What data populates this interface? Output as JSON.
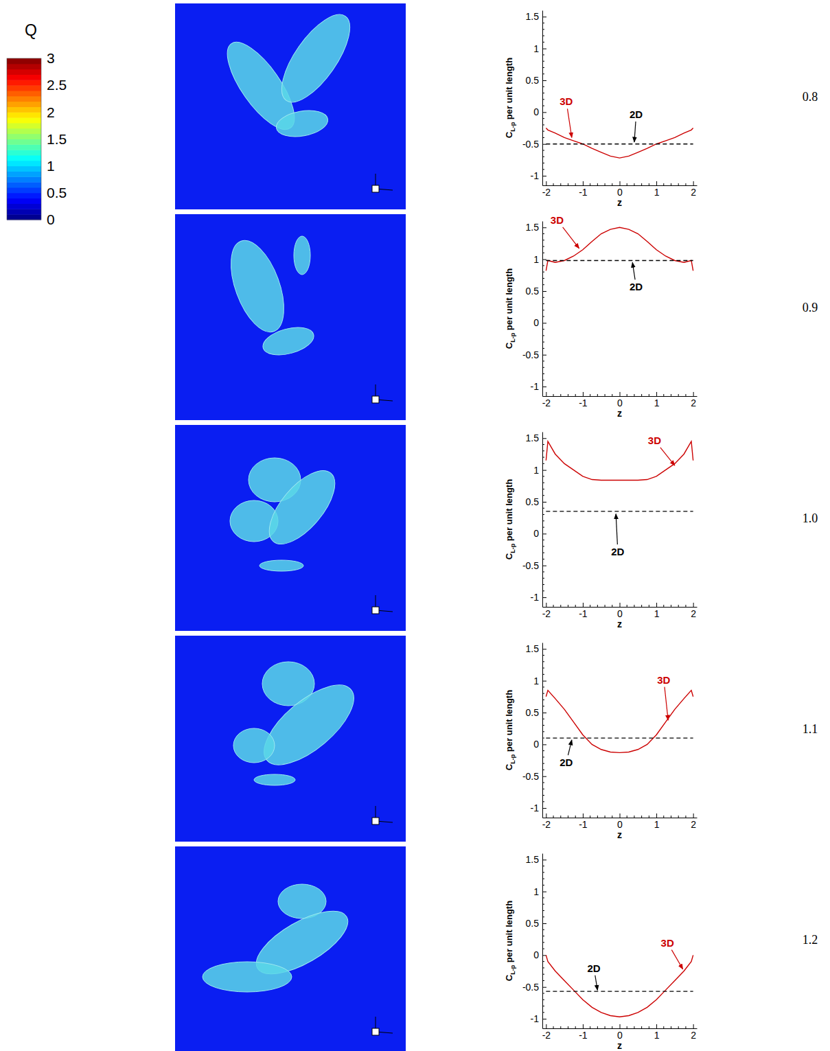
{
  "chart_data": [
    {
      "type": "line",
      "label": "0.8",
      "xlabel": "z",
      "ylabel": [
        "C",
        "L-p",
        " per unit length"
      ],
      "x": [
        -2,
        -1.95,
        -1.75,
        -1.5,
        -1.25,
        -1,
        -0.75,
        -0.5,
        -0.25,
        0,
        0.25,
        0.5,
        0.75,
        1,
        1.25,
        1.5,
        1.75,
        1.95,
        2
      ],
      "xlim": [
        -2.1,
        2.1
      ],
      "xticks": [
        -2,
        -1,
        0,
        1,
        2
      ],
      "ylim": [
        -1.15,
        1.6
      ],
      "yticks": [
        -1,
        -0.5,
        0,
        0.5,
        1,
        1.5
      ],
      "series": [
        {
          "name": "3D",
          "color": "#cc0000",
          "line_style": "solid",
          "label_x": -1.45,
          "label_y": 0.15,
          "arrow_x": -1.3,
          "arrow_y": -0.4,
          "values": [
            -0.25,
            -0.28,
            -0.33,
            -0.4,
            -0.45,
            -0.5,
            -0.57,
            -0.63,
            -0.69,
            -0.72,
            -0.69,
            -0.63,
            -0.57,
            -0.5,
            -0.45,
            -0.4,
            -0.33,
            -0.28,
            -0.25
          ]
        },
        {
          "name": "2D",
          "color": "#000000",
          "line_style": "dashed",
          "label_x": 0.45,
          "label_y": -0.05,
          "arrow_x": 0.4,
          "arrow_y": -0.47,
          "values": [
            -0.5,
            -0.5,
            -0.5,
            -0.5,
            -0.5,
            -0.5,
            -0.5,
            -0.5,
            -0.5,
            -0.5,
            -0.5,
            -0.5,
            -0.5,
            -0.5,
            -0.5,
            -0.5,
            -0.5,
            -0.5,
            -0.5
          ]
        }
      ]
    },
    {
      "type": "line",
      "label": "0.9",
      "xlabel": "z",
      "ylabel": [
        "C",
        "L-p",
        " per unit length"
      ],
      "x": [
        -2,
        -1.95,
        -1.75,
        -1.5,
        -1.25,
        -1,
        -0.75,
        -0.5,
        -0.25,
        0,
        0.25,
        0.5,
        0.75,
        1,
        1.25,
        1.5,
        1.75,
        1.95,
        2
      ],
      "xlim": [
        -2.1,
        2.1
      ],
      "xticks": [
        -2,
        -1,
        0,
        1,
        2
      ],
      "ylim": [
        -1.15,
        1.6
      ],
      "yticks": [
        -1,
        -0.5,
        0,
        0.5,
        1,
        1.5
      ],
      "series": [
        {
          "name": "3D",
          "color": "#cc0000",
          "line_style": "solid",
          "label_x": -1.7,
          "label_y": 1.6,
          "arrow_x": -1.1,
          "arrow_y": 1.17,
          "values": [
            0.82,
            0.98,
            0.95,
            0.98,
            1.05,
            1.15,
            1.28,
            1.4,
            1.47,
            1.5,
            1.47,
            1.4,
            1.28,
            1.15,
            1.05,
            0.98,
            0.95,
            0.98,
            0.82
          ]
        },
        {
          "name": "2D",
          "color": "#000000",
          "line_style": "dashed",
          "label_x": 0.45,
          "label_y": 0.55,
          "arrow_x": 0.35,
          "arrow_y": 0.95,
          "values": [
            0.98,
            0.98,
            0.98,
            0.98,
            0.98,
            0.98,
            0.98,
            0.98,
            0.98,
            0.98,
            0.98,
            0.98,
            0.98,
            0.98,
            0.98,
            0.98,
            0.98,
            0.98,
            0.98
          ]
        }
      ]
    },
    {
      "type": "line",
      "label": "1.0",
      "xlabel": "z",
      "ylabel": [
        "C",
        "L-p",
        " per unit length"
      ],
      "x": [
        -2,
        -1.95,
        -1.75,
        -1.5,
        -1.25,
        -1,
        -0.75,
        -0.5,
        -0.25,
        0,
        0.25,
        0.5,
        0.75,
        1,
        1.25,
        1.5,
        1.75,
        1.95,
        2
      ],
      "xlim": [
        -2.1,
        2.1
      ],
      "xticks": [
        -2,
        -1,
        0,
        1,
        2
      ],
      "ylim": [
        -1.15,
        1.6
      ],
      "yticks": [
        -1,
        -0.5,
        0,
        0.5,
        1,
        1.5
      ],
      "series": [
        {
          "name": "3D",
          "color": "#cc0000",
          "line_style": "solid",
          "label_x": 0.95,
          "label_y": 1.45,
          "arrow_x": 1.5,
          "arrow_y": 1.07,
          "values": [
            1.15,
            1.45,
            1.25,
            1.1,
            1.0,
            0.9,
            0.85,
            0.84,
            0.84,
            0.84,
            0.84,
            0.84,
            0.85,
            0.9,
            1.0,
            1.1,
            1.25,
            1.45,
            1.15
          ]
        },
        {
          "name": "2D",
          "color": "#000000",
          "line_style": "dashed",
          "label_x": -0.05,
          "label_y": -0.3,
          "arrow_x": -0.1,
          "arrow_y": 0.31,
          "values": [
            0.35,
            0.35,
            0.35,
            0.35,
            0.35,
            0.35,
            0.35,
            0.35,
            0.35,
            0.35,
            0.35,
            0.35,
            0.35,
            0.35,
            0.35,
            0.35,
            0.35,
            0.35,
            0.35
          ]
        }
      ]
    },
    {
      "type": "line",
      "label": "1.1",
      "xlabel": "z",
      "ylabel": [
        "C",
        "L-p",
        " per unit length"
      ],
      "x": [
        -2,
        -1.95,
        -1.75,
        -1.5,
        -1.25,
        -1,
        -0.75,
        -0.5,
        -0.25,
        0,
        0.25,
        0.5,
        0.75,
        1,
        1.25,
        1.5,
        1.75,
        1.95,
        2
      ],
      "xlim": [
        -2.1,
        2.1
      ],
      "xticks": [
        -2,
        -1,
        0,
        1,
        2
      ],
      "ylim": [
        -1.15,
        1.6
      ],
      "yticks": [
        -1,
        -0.5,
        0,
        0.5,
        1,
        1.5
      ],
      "series": [
        {
          "name": "3D",
          "color": "#cc0000",
          "line_style": "solid",
          "label_x": 1.2,
          "label_y": 1.0,
          "arrow_x": 1.32,
          "arrow_y": 0.38,
          "values": [
            0.75,
            0.85,
            0.72,
            0.55,
            0.35,
            0.15,
            0.0,
            -0.08,
            -0.12,
            -0.13,
            -0.12,
            -0.08,
            0.0,
            0.15,
            0.35,
            0.55,
            0.72,
            0.85,
            0.75
          ]
        },
        {
          "name": "2D",
          "color": "#000000",
          "line_style": "dashed",
          "label_x": -1.45,
          "label_y": -0.3,
          "arrow_x": -1.3,
          "arrow_y": 0.07,
          "values": [
            0.1,
            0.1,
            0.1,
            0.1,
            0.1,
            0.1,
            0.1,
            0.1,
            0.1,
            0.1,
            0.1,
            0.1,
            0.1,
            0.1,
            0.1,
            0.1,
            0.1,
            0.1,
            0.1
          ]
        }
      ]
    },
    {
      "type": "line",
      "label": "1.2",
      "xlabel": "z",
      "ylabel": [
        "C",
        "L-p",
        " per unit length"
      ],
      "x": [
        -2,
        -1.95,
        -1.75,
        -1.5,
        -1.25,
        -1,
        -0.75,
        -0.5,
        -0.25,
        0,
        0.25,
        0.5,
        0.75,
        1,
        1.25,
        1.5,
        1.75,
        1.95,
        2
      ],
      "xlim": [
        -2.1,
        2.1
      ],
      "xticks": [
        -2,
        -1,
        0,
        1,
        2
      ],
      "ylim": [
        -1.15,
        1.6
      ],
      "yticks": [
        -1,
        -0.5,
        0,
        0.5,
        1,
        1.5
      ],
      "series": [
        {
          "name": "3D",
          "color": "#cc0000",
          "line_style": "solid",
          "label_x": 1.3,
          "label_y": 0.18,
          "arrow_x": 1.72,
          "arrow_y": -0.22,
          "values": [
            0.0,
            -0.1,
            -0.25,
            -0.4,
            -0.55,
            -0.7,
            -0.82,
            -0.9,
            -0.95,
            -0.97,
            -0.95,
            -0.9,
            -0.82,
            -0.7,
            -0.55,
            -0.4,
            -0.25,
            -0.1,
            0.0
          ]
        },
        {
          "name": "2D",
          "color": "#000000",
          "line_style": "dashed",
          "label_x": -0.7,
          "label_y": -0.22,
          "arrow_x": -0.6,
          "arrow_y": -0.55,
          "values": [
            -0.57,
            -0.57,
            -0.57,
            -0.57,
            -0.57,
            -0.57,
            -0.57,
            -0.57,
            -0.57,
            -0.57,
            -0.57,
            -0.57,
            -0.57,
            -0.57,
            -0.57,
            -0.57,
            -0.57,
            -0.57,
            -0.57
          ]
        }
      ]
    }
  ],
  "colorbar": {
    "title": "Q",
    "range": [
      0,
      3
    ],
    "ticks": [
      0,
      0.5,
      1,
      1.5,
      2,
      2.5,
      3
    ]
  }
}
